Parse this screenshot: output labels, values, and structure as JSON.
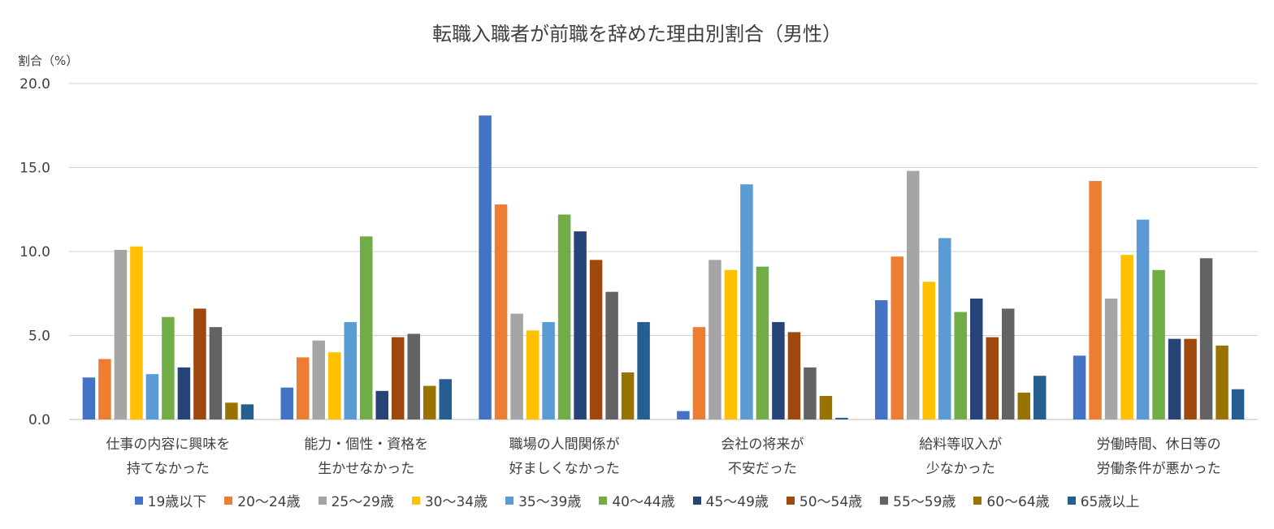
{
  "chart_data": {
    "type": "bar",
    "title": "転職入職者が前職を辞めた理由別割合（男性）",
    "ylabel": "割合（%）",
    "ylim": [
      0,
      20
    ],
    "yticks": [
      "0.0",
      "5.0",
      "10.0",
      "15.0",
      "20.0"
    ],
    "grid": true,
    "legend_position": "bottom",
    "categories": [
      [
        "仕事の内容に興味を",
        "持てなかった"
      ],
      [
        "能力・個性・資格を",
        "生かせなかった"
      ],
      [
        "職場の人間関係が",
        "好ましくなかった"
      ],
      [
        "会社の将来が",
        "不安だった"
      ],
      [
        "給料等収入が",
        "少なかった"
      ],
      [
        "労働時間、休日等の",
        "労働条件が悪かった"
      ]
    ],
    "series": [
      {
        "name": "19歳以下",
        "color": "#4472C4",
        "values": [
          2.5,
          1.9,
          18.1,
          0.5,
          7.1,
          3.8
        ]
      },
      {
        "name": "20～24歳",
        "color": "#ED7D31",
        "values": [
          3.6,
          3.7,
          12.8,
          5.5,
          9.7,
          14.2
        ]
      },
      {
        "name": "25～29歳",
        "color": "#A5A5A5",
        "values": [
          10.1,
          4.7,
          6.3,
          9.5,
          14.8,
          7.2
        ]
      },
      {
        "name": "30～34歳",
        "color": "#FFC000",
        "values": [
          10.3,
          4.0,
          5.3,
          8.9,
          8.2,
          9.8
        ]
      },
      {
        "name": "35～39歳",
        "color": "#5B9BD5",
        "values": [
          2.7,
          5.8,
          5.8,
          14.0,
          10.8,
          11.9
        ]
      },
      {
        "name": "40～44歳",
        "color": "#70AD47",
        "values": [
          6.1,
          10.9,
          12.2,
          9.1,
          6.4,
          8.9
        ]
      },
      {
        "name": "45～49歳",
        "color": "#264478",
        "values": [
          3.1,
          1.7,
          11.2,
          5.8,
          7.2,
          4.8
        ]
      },
      {
        "name": "50～54歳",
        "color": "#9E480E",
        "values": [
          6.6,
          4.9,
          9.5,
          5.2,
          4.9,
          4.8
        ]
      },
      {
        "name": "55～59歳",
        "color": "#636363",
        "values": [
          5.5,
          5.1,
          7.6,
          3.1,
          6.6,
          9.6
        ]
      },
      {
        "name": "60～64歳",
        "color": "#997300",
        "values": [
          1.0,
          2.0,
          2.8,
          1.4,
          1.6,
          4.4
        ]
      },
      {
        "name": "65歳以上",
        "color": "#255E91",
        "values": [
          0.9,
          2.4,
          5.8,
          0.1,
          2.6,
          1.8
        ]
      }
    ]
  }
}
